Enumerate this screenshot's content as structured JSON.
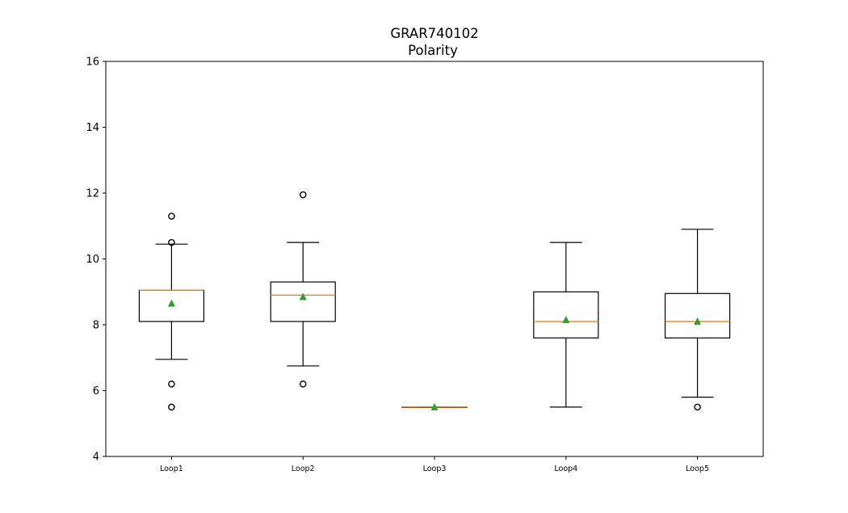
{
  "chart_data": {
    "type": "boxplot",
    "title": "GRAR740102",
    "subtitle": "Polarity",
    "xlabel": "",
    "ylabel": "",
    "ylim": [
      4,
      16
    ],
    "yticks": [
      4,
      6,
      8,
      10,
      12,
      14,
      16
    ],
    "grid": false,
    "legend": "none",
    "categories": [
      "Loop1",
      "Loop2",
      "Loop3",
      "Loop4",
      "Loop5"
    ],
    "boxes": [
      {
        "whisker_low": 6.95,
        "q1": 8.1,
        "median": 9.05,
        "q3": 9.05,
        "whisker_high": 10.45,
        "mean": 8.65,
        "outliers": [
          11.3,
          10.5,
          6.2,
          5.5
        ]
      },
      {
        "whisker_low": 6.75,
        "q1": 8.1,
        "median": 8.9,
        "q3": 9.3,
        "whisker_high": 10.5,
        "mean": 8.85,
        "outliers": [
          11.95,
          6.2
        ]
      },
      {
        "whisker_low": 5.5,
        "q1": 5.5,
        "median": 5.5,
        "q3": 5.5,
        "whisker_high": 5.5,
        "mean": 5.5,
        "outliers": []
      },
      {
        "whisker_low": 5.5,
        "q1": 7.6,
        "median": 8.1,
        "q3": 9.0,
        "whisker_high": 10.5,
        "mean": 8.15,
        "outliers": []
      },
      {
        "whisker_low": 5.8,
        "q1": 7.6,
        "median": 8.1,
        "q3": 8.95,
        "whisker_high": 10.9,
        "mean": 8.1,
        "outliers": [
          5.5
        ]
      }
    ],
    "colors": {
      "box": "#000000",
      "median": "#ff7f0e",
      "mean": "#2ca02c",
      "outlier": "#000000"
    }
  }
}
